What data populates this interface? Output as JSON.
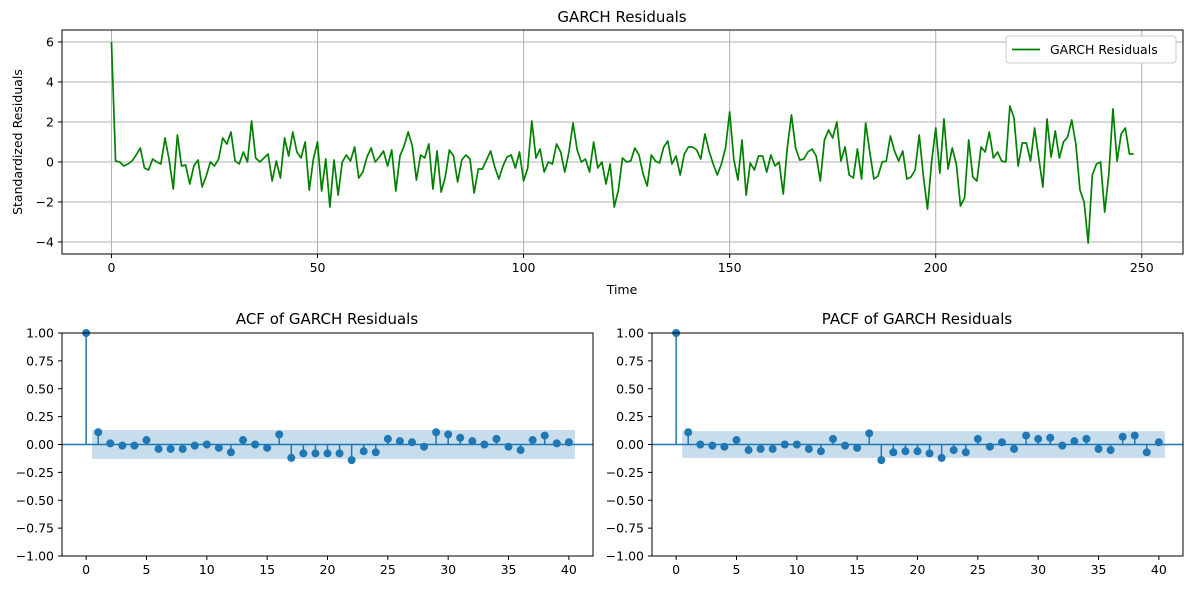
{
  "chart_data": [
    {
      "type": "line",
      "title": "GARCH Residuals",
      "xlabel": "Time",
      "ylabel": "Standardized Residuals",
      "xlim": [
        -12,
        260
      ],
      "ylim": [
        -4.6,
        6.6
      ],
      "xticks": [
        0,
        50,
        100,
        150,
        200,
        250
      ],
      "yticks": [
        -4,
        -2,
        0,
        2,
        4,
        6
      ],
      "grid": true,
      "legend_position": "top-right",
      "series": [
        {
          "name": "GARCH Residuals",
          "color": "#008000",
          "x_start": 0,
          "values": [
            6.0,
            0.05,
            0.0,
            -0.2,
            -0.1,
            0.05,
            0.35,
            0.7,
            -0.3,
            -0.4,
            0.15,
            0.0,
            -0.1,
            1.2,
            0.1,
            -1.35,
            1.35,
            -0.2,
            -0.15,
            -1.1,
            -0.2,
            0.1,
            -1.25,
            -0.7,
            0.0,
            -0.2,
            0.15,
            1.2,
            0.9,
            1.5,
            0.05,
            -0.1,
            0.5,
            0.0,
            2.05,
            0.2,
            0.0,
            0.2,
            0.4,
            -0.95,
            0.05,
            -0.8,
            1.2,
            0.3,
            1.5,
            0.5,
            0.2,
            1.0,
            -1.4,
            0.15,
            1.0,
            -1.45,
            0.15,
            -2.25,
            0.1,
            -1.65,
            0.0,
            0.35,
            0.05,
            0.75,
            -0.8,
            -0.5,
            0.25,
            0.7,
            0.0,
            0.25,
            0.55,
            -0.2,
            0.6,
            -1.45,
            0.3,
            0.8,
            1.5,
            0.8,
            -0.9,
            0.35,
            0.2,
            0.9,
            -1.35,
            0.55,
            -1.5,
            -0.75,
            0.6,
            0.3,
            -1.0,
            0.1,
            0.35,
            0.15,
            -1.55,
            -0.35,
            -0.35,
            0.1,
            0.55,
            -0.25,
            -0.85,
            -0.2,
            0.25,
            0.35,
            -0.3,
            0.5,
            -0.95,
            -0.3,
            2.05,
            0.2,
            0.65,
            -0.5,
            0.0,
            -0.1,
            0.9,
            0.5,
            -0.5,
            0.5,
            1.95,
            0.6,
            0.0,
            0.15,
            -0.5,
            1.0,
            -0.3,
            0.0,
            -1.1,
            -0.1,
            -2.25,
            -1.4,
            0.2,
            0.0,
            0.05,
            0.7,
            0.35,
            -0.6,
            -1.2,
            0.35,
            0.05,
            -0.05,
            0.75,
            1.05,
            -0.1,
            0.3,
            -0.65,
            0.4,
            0.75,
            0.75,
            0.6,
            0.15,
            1.4,
            0.55,
            -0.1,
            -0.65,
            -0.1,
            0.7,
            2.5,
            0.15,
            -0.9,
            1.1,
            -1.65,
            -0.05,
            -0.4,
            0.3,
            0.3,
            -0.5,
            0.35,
            -0.2,
            0.0,
            -1.6,
            0.75,
            2.35,
            0.7,
            0.1,
            0.15,
            0.5,
            0.65,
            0.3,
            -0.95,
            1.1,
            1.6,
            1.2,
            2.0,
            0.05,
            0.75,
            -0.65,
            -0.8,
            0.65,
            -0.85,
            1.95,
            0.5,
            -0.85,
            -0.7,
            0.0,
            0.05,
            1.3,
            0.55,
            0.05,
            0.55,
            -0.85,
            -0.75,
            -0.4,
            1.35,
            -0.7,
            -2.35,
            0.0,
            1.7,
            -0.55,
            2.15,
            -0.35,
            0.7,
            -0.1,
            -2.2,
            -1.8,
            1.1,
            -0.75,
            -0.95,
            0.75,
            0.5,
            1.5,
            0.2,
            0.5,
            0.05,
            0.0,
            2.8,
            2.2,
            -0.2,
            0.95,
            0.95,
            0.05,
            1.7,
            0.2,
            -1.25,
            2.15,
            0.25,
            1.55,
            0.2,
            1.0,
            1.25,
            2.1,
            0.9,
            -1.4,
            -2.0,
            -4.05,
            -0.65,
            -0.1,
            0.0,
            -2.5,
            -0.6,
            2.65,
            0.05,
            1.4,
            1.7,
            0.4,
            0.4
          ]
        }
      ]
    },
    {
      "type": "stem",
      "title": "ACF of GARCH Residuals",
      "xlabel": "",
      "ylabel": "",
      "xlim": [
        -2,
        42
      ],
      "ylim": [
        -1.0,
        1.0
      ],
      "xticks": [
        0,
        5,
        10,
        15,
        20,
        25,
        30,
        35,
        40
      ],
      "yticks": [
        -1.0,
        -0.75,
        -0.5,
        -0.25,
        0.0,
        0.25,
        0.5,
        0.75,
        1.0
      ],
      "ytick_labels": [
        "−1.00",
        "−0.75",
        "−0.50",
        "−0.25",
        "0.00",
        "0.25",
        "0.50",
        "0.75",
        "1.00"
      ],
      "confidence_band": 0.13,
      "color": "#1f77b4",
      "lags": [
        0,
        1,
        2,
        3,
        4,
        5,
        6,
        7,
        8,
        9,
        10,
        11,
        12,
        13,
        14,
        15,
        16,
        17,
        18,
        19,
        20,
        21,
        22,
        23,
        24,
        25,
        26,
        27,
        28,
        29,
        30,
        31,
        32,
        33,
        34,
        35,
        36,
        37,
        38,
        39,
        40
      ],
      "values": [
        1.0,
        0.11,
        0.01,
        -0.01,
        -0.01,
        0.04,
        -0.04,
        -0.04,
        -0.04,
        -0.01,
        0.0,
        -0.03,
        -0.07,
        0.04,
        0.0,
        -0.03,
        0.09,
        -0.12,
        -0.08,
        -0.08,
        -0.08,
        -0.08,
        -0.14,
        -0.06,
        -0.07,
        0.05,
        0.03,
        0.02,
        -0.02,
        0.11,
        0.09,
        0.06,
        0.03,
        0.0,
        0.05,
        -0.02,
        -0.05,
        0.04,
        0.08,
        0.01,
        0.02
      ]
    },
    {
      "type": "stem",
      "title": "PACF of GARCH Residuals",
      "xlabel": "",
      "ylabel": "",
      "xlim": [
        -2,
        42
      ],
      "ylim": [
        -1.0,
        1.0
      ],
      "xticks": [
        0,
        5,
        10,
        15,
        20,
        25,
        30,
        35,
        40
      ],
      "yticks": [
        -1.0,
        -0.75,
        -0.5,
        -0.25,
        0.0,
        0.25,
        0.5,
        0.75,
        1.0
      ],
      "ytick_labels": [
        "−1.00",
        "−0.75",
        "−0.50",
        "−0.25",
        "0.00",
        "0.25",
        "0.50",
        "0.75",
        "1.00"
      ],
      "confidence_band": 0.12,
      "color": "#1f77b4",
      "lags": [
        0,
        1,
        2,
        3,
        4,
        5,
        6,
        7,
        8,
        9,
        10,
        11,
        12,
        13,
        14,
        15,
        16,
        17,
        18,
        19,
        20,
        21,
        22,
        23,
        24,
        25,
        26,
        27,
        28,
        29,
        30,
        31,
        32,
        33,
        34,
        35,
        36,
        37,
        38,
        39,
        40
      ],
      "values": [
        1.0,
        0.11,
        0.0,
        -0.01,
        -0.02,
        0.04,
        -0.05,
        -0.04,
        -0.04,
        0.0,
        0.0,
        -0.04,
        -0.06,
        0.05,
        -0.01,
        -0.03,
        0.1,
        -0.14,
        -0.07,
        -0.06,
        -0.06,
        -0.08,
        -0.12,
        -0.05,
        -0.07,
        0.05,
        -0.02,
        0.02,
        -0.04,
        0.08,
        0.05,
        0.06,
        -0.01,
        0.03,
        0.05,
        -0.04,
        -0.05,
        0.07,
        0.08,
        -0.07,
        0.02
      ]
    }
  ]
}
